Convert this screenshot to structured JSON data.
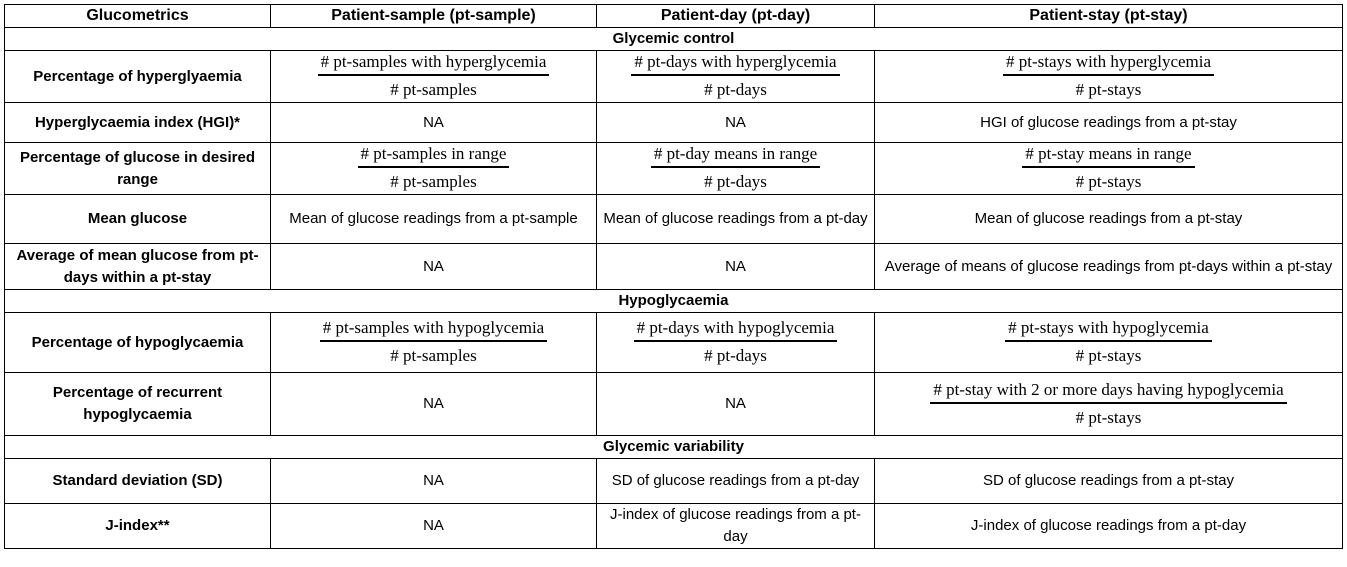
{
  "header": {
    "col1": "Glucometrics",
    "col2": "Patient-sample (pt-sample)",
    "col3": "Patient-day (pt-day)",
    "col4": "Patient-stay (pt-stay)"
  },
  "sections": {
    "glycemic_control": "Glycemic control",
    "hypoglycaemia": "Hypoglycaemia",
    "glycemic_variability": "Glycemic variability"
  },
  "rows": {
    "hyper": {
      "metric": "Percentage of hyperglyaemia",
      "sample_num": "# pt-samples with hyperglycemia",
      "sample_den": "# pt-samples",
      "day_num": "# pt-days with hyperglycemia",
      "day_den": "# pt-days",
      "stay_num": "# pt-stays with hyperglycemia",
      "stay_den": "# pt-stays"
    },
    "hgi": {
      "metric": "Hyperglycaemia index (HGI)*",
      "sample": "NA",
      "day": "NA",
      "stay": "HGI of glucose readings from a pt-stay"
    },
    "range": {
      "metric": "Percentage of glucose in desired range",
      "sample_num": "# pt-samples in range",
      "sample_den": "# pt-samples",
      "day_num": "# pt-day means in range",
      "day_den": "# pt-days",
      "stay_num": "# pt-stay means in range",
      "stay_den": "# pt-stays"
    },
    "mean": {
      "metric": "Mean glucose",
      "sample": "Mean of glucose readings from a pt-sample",
      "day": "Mean of glucose readings from a pt-day",
      "stay": "Mean of glucose readings from a pt-stay"
    },
    "avg": {
      "metric": "Average of mean glucose from pt-days within a pt-stay",
      "sample": "NA",
      "day": "NA",
      "stay": "Average of means of glucose readings from pt-days within a pt-stay"
    },
    "hypo": {
      "metric": "Percentage of hypoglycaemia",
      "sample_num": "# pt-samples with hypoglycemia",
      "sample_den": "# pt-samples",
      "day_num": "# pt-days with hypoglycemia",
      "day_den": "# pt-days",
      "stay_num": "# pt-stays with hypoglycemia",
      "stay_den": "# pt-stays"
    },
    "recurrent": {
      "metric": "Percentage of recurrent hypoglycaemia",
      "sample": "NA",
      "day": "NA",
      "stay_num": "# pt-stay with 2 or more days having hypoglycemia",
      "stay_den": "# pt-stays"
    },
    "sd": {
      "metric": "Standard deviation (SD)",
      "sample": "NA",
      "day": "SD of glucose readings from a pt-day",
      "stay": "SD of glucose readings from a pt-stay"
    },
    "jindex": {
      "metric": "J-index**",
      "sample": "NA",
      "day": "J-index of glucose readings from a pt-day",
      "stay": "J-index of glucose readings from a pt-day"
    }
  }
}
